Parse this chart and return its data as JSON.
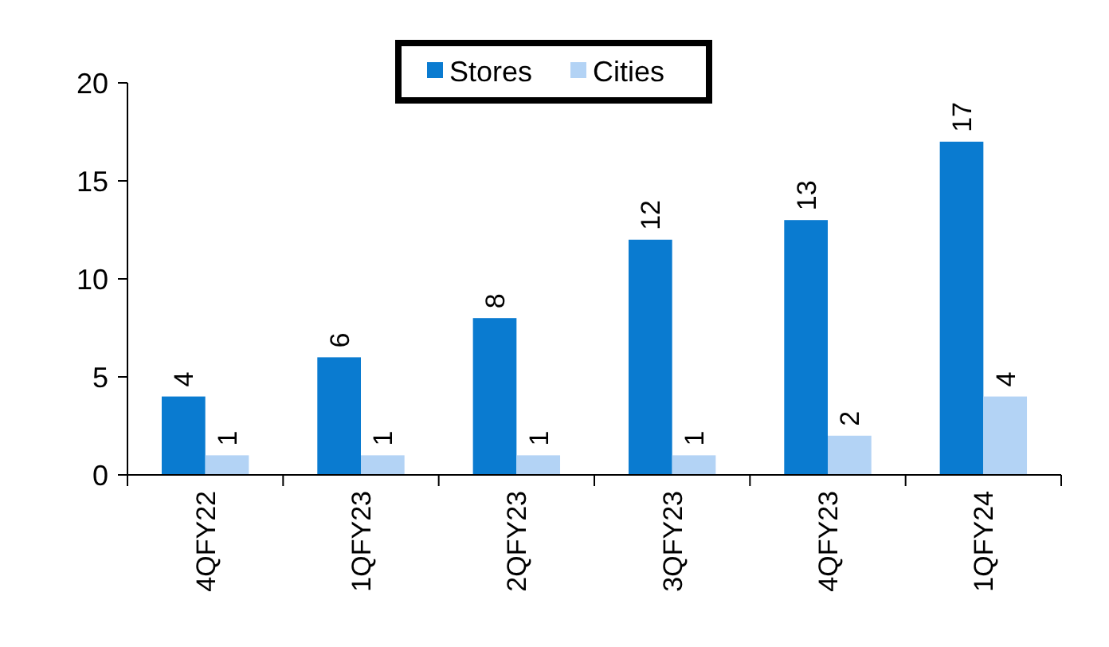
{
  "chart_data": {
    "type": "bar",
    "categories": [
      "4QFY22",
      "1QFY23",
      "2QFY23",
      "3QFY23",
      "4QFY23",
      "1QFY24"
    ],
    "series": [
      {
        "name": "Stores",
        "color": "#0a7bd0",
        "values": [
          4,
          6,
          8,
          12,
          13,
          17
        ]
      },
      {
        "name": "Cities",
        "color": "#b3d3f5",
        "values": [
          1,
          1,
          1,
          1,
          2,
          4
        ]
      }
    ],
    "ylim": [
      0,
      20
    ],
    "yticks": [
      0,
      5,
      10,
      15,
      20
    ],
    "data_labels": true,
    "legend": "top",
    "grid": false
  }
}
